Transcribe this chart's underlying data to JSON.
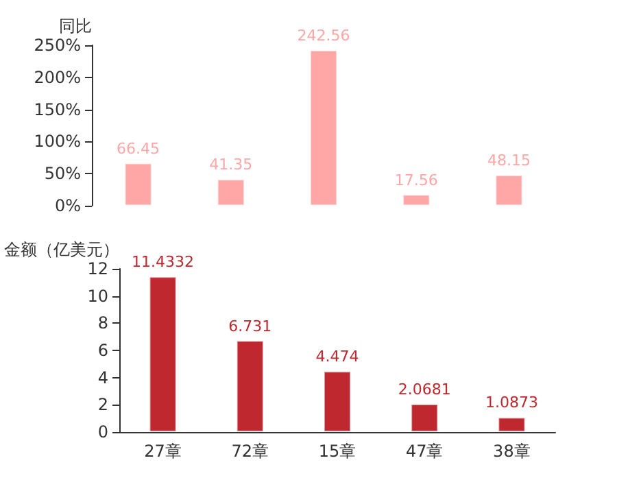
{
  "chart_data": [
    {
      "type": "bar",
      "ylabel": "同比",
      "categories": [
        null,
        null,
        null,
        null,
        null
      ],
      "tick_labels": "y",
      "series": [
        {
          "color": "#ffa6a6",
          "values": [
            66.45,
            41.35,
            242.56,
            17.56,
            48.15
          ]
        }
      ],
      "ylim": [
        0,
        250
      ],
      "yticks": [
        {
          "value": 0,
          "label": "0%"
        },
        {
          "value": 50,
          "label": "50%"
        },
        {
          "value": 100,
          "label": "100%"
        },
        {
          "value": 150,
          "label": "150%"
        },
        {
          "value": 200,
          "label": "200%"
        },
        {
          "value": 250,
          "label": "250%"
        }
      ],
      "data_labels": true
    },
    {
      "type": "bar",
      "ylabel": "金额（亿美元）",
      "categories": [
        "27章",
        "72章",
        "15章",
        "47章",
        "38章"
      ],
      "series": [
        {
          "color": "#c0282f",
          "values": [
            11.4332,
            6.731,
            4.474,
            2.0681,
            1.0873
          ]
        }
      ],
      "ylim": [
        0,
        12
      ],
      "yticks": [
        0,
        2,
        4,
        6,
        8,
        10,
        12
      ],
      "data_labels": true
    }
  ]
}
